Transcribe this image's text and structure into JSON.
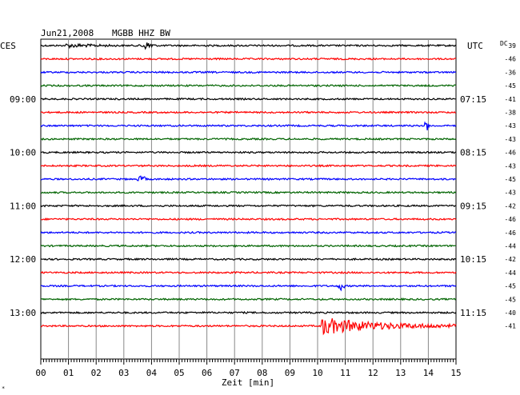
{
  "header": {
    "date": "Jun21,2008",
    "station": "MGBB HHZ BW",
    "left_tz": "CES",
    "right_tz": "UTC",
    "dc_label": "DC"
  },
  "chart_data": {
    "type": "line",
    "title": "Jun21,2008  MGBB HHZ BW",
    "xlabel": "Zeit [min]",
    "xlim": [
      0,
      15
    ],
    "x_ticks": [
      "00",
      "01",
      "02",
      "03",
      "04",
      "05",
      "06",
      "07",
      "08",
      "09",
      "10",
      "11",
      "12",
      "13",
      "14",
      "15"
    ],
    "trace_colors": [
      "#000000",
      "#ff0000",
      "#0000ff",
      "#006400"
    ],
    "left_hour_labels": [
      {
        "trace": 4,
        "label": "09:00"
      },
      {
        "trace": 8,
        "label": "10:00"
      },
      {
        "trace": 12,
        "label": "11:00"
      },
      {
        "trace": 16,
        "label": "12:00"
      },
      {
        "trace": 20,
        "label": "13:00"
      }
    ],
    "right_hour_labels": [
      {
        "trace": 4,
        "label": "07:15"
      },
      {
        "trace": 8,
        "label": "08:15"
      },
      {
        "trace": 12,
        "label": "09:15"
      },
      {
        "trace": 16,
        "label": "10:15"
      },
      {
        "trace": 20,
        "label": "11:15"
      }
    ],
    "dc_offsets": [
      "39",
      "-46",
      "-36",
      "-45",
      "-41",
      "-38",
      "-43",
      "-43",
      "-46",
      "-43",
      "-45",
      "-43",
      "-42",
      "-46",
      "-46",
      "-44",
      "-42",
      "-44",
      "-45",
      "-45",
      "-40",
      "-41"
    ],
    "events": [
      {
        "trace": 0,
        "start_min": 0.9,
        "end_min": 5.2,
        "amp": 3,
        "label": "trace 1 noise burst"
      },
      {
        "trace": 0,
        "start_min": 3.5,
        "end_min": 4.2,
        "amp": 5,
        "label": "trace 1 spike"
      },
      {
        "trace": 6,
        "start_min": 13.8,
        "end_min": 14.1,
        "amp": 6,
        "label": "trace 7 spike"
      },
      {
        "trace": 10,
        "start_min": 3.4,
        "end_min": 3.9,
        "amp": 4,
        "label": "trace 11 spike"
      },
      {
        "trace": 18,
        "start_min": 10.7,
        "end_min": 11.0,
        "amp": 6,
        "label": "trace 19 spike"
      },
      {
        "trace": 21,
        "start_min": 10.1,
        "end_min": 15.0,
        "amp": 12,
        "label": "trace 22 earthquake"
      }
    ]
  }
}
